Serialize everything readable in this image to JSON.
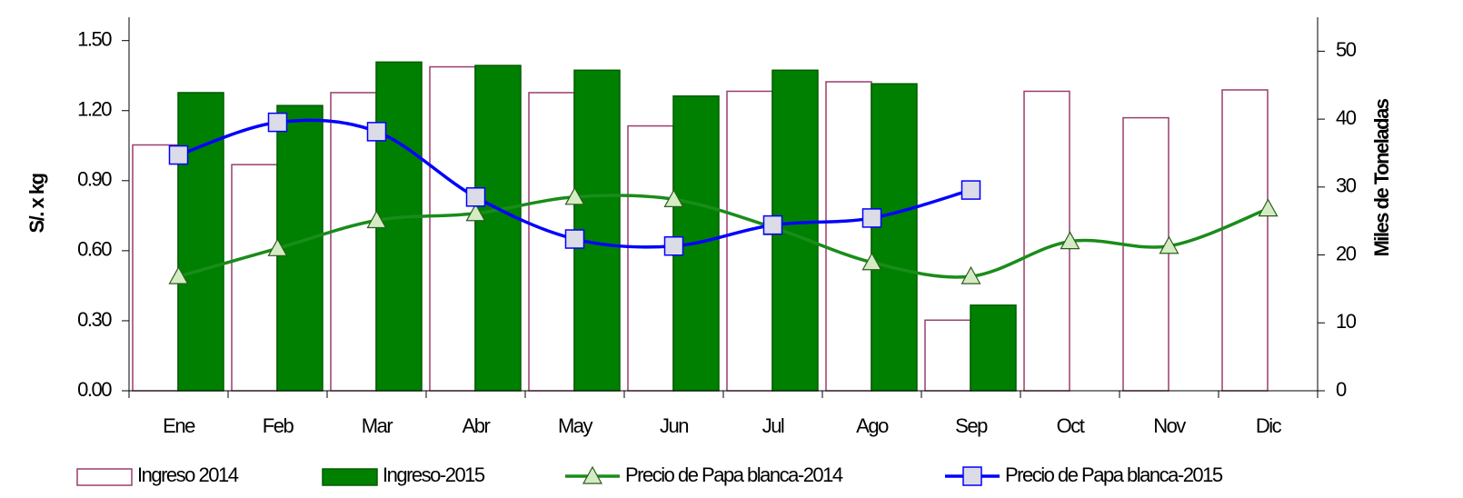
{
  "chart_data": {
    "type": "bar-line",
    "ylabel": "S/. x kg",
    "y2label": "Miles de Toneladas",
    "categories": [
      "Ene",
      "Feb",
      "Mar",
      "Abr",
      "May",
      "Jun",
      "Jul",
      "Ago",
      "Sep",
      "Oct",
      "Nov",
      "Dic"
    ],
    "ylim": [
      0,
      1.6
    ],
    "yticks": [
      {
        "value": 0,
        "label": "0.00"
      },
      {
        "value": 0.3,
        "label": "0.30"
      },
      {
        "value": 0.6,
        "label": "0.60"
      },
      {
        "value": 0.9,
        "label": "0.90"
      },
      {
        "value": 1.2,
        "label": "1.20"
      },
      {
        "value": 1.5,
        "label": "1.50"
      }
    ],
    "y2lim": [
      0,
      55
    ],
    "y2ticks": [
      0,
      10,
      20,
      30,
      40,
      50
    ],
    "series": [
      {
        "name": "Ingreso 2014",
        "type": "bar",
        "axis": "y2",
        "color": "#ffffff",
        "edge": "#9b3d6e",
        "values": [
          36.2,
          33.3,
          43.9,
          47.7,
          43.9,
          39.0,
          44.1,
          45.5,
          10.4,
          44.1,
          40.2,
          44.3
        ]
      },
      {
        "name": "Ingreso-2015",
        "type": "bar",
        "axis": "y2",
        "color": "#008000",
        "edge": "#005c00",
        "values": [
          43.9,
          42.0,
          48.4,
          47.9,
          47.2,
          43.4,
          47.2,
          45.2,
          12.6,
          null,
          null,
          null
        ]
      },
      {
        "name": "Precio de Papa blanca-2014",
        "type": "line",
        "marker": "triangle",
        "color": "#1a8c1a",
        "marker_fill": "#d4ecc4",
        "values": [
          0.49,
          0.61,
          0.73,
          0.76,
          0.83,
          0.82,
          0.7,
          0.55,
          0.49,
          0.64,
          0.62,
          0.78
        ]
      },
      {
        "name": "Precio de Papa blanca-2015",
        "type": "line",
        "marker": "square",
        "color": "#0000ff",
        "marker_fill": "#dcdce8",
        "values": [
          1.01,
          1.15,
          1.11,
          0.83,
          0.65,
          0.62,
          0.71,
          0.74,
          0.86,
          null,
          null,
          null
        ]
      }
    ]
  }
}
